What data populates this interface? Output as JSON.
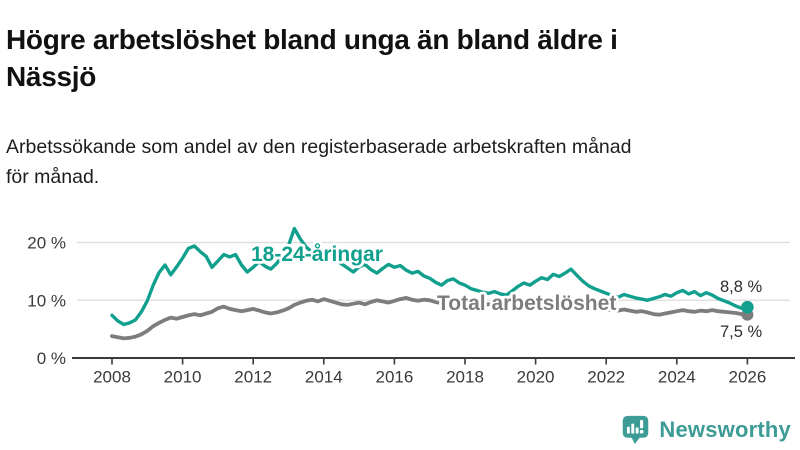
{
  "title": {
    "line1": "Högre arbetslöshet bland unga än bland äldre i",
    "line2": "Nässjö"
  },
  "subtitle": {
    "line1": "Arbetssökande som andel av den registerbaserade arbetskraften månad",
    "line2": "för månad."
  },
  "chart_data": {
    "type": "line",
    "x_unit": "year (monthly share of labour force)",
    "x_start": 2008.0,
    "x_step_years": 0.1667,
    "x_end": 2026.0,
    "x_tick_labels": [
      "2008",
      "2010",
      "2012",
      "2014",
      "2016",
      "2018",
      "2020",
      "2022",
      "2024",
      "2026"
    ],
    "y_ticks": [
      0,
      10,
      20
    ],
    "y_tick_labels": [
      "0 %",
      "10 %",
      "20 %"
    ],
    "ylim": [
      0,
      24
    ],
    "grid": "horizontal-only",
    "legend": "inline-labels-on-lines",
    "series": [
      {
        "name": "18-24-åringar",
        "color": "#12a08e",
        "end_value": 8.8,
        "end_label": "8,8 %",
        "values": [
          7.4,
          6.4,
          5.8,
          6.1,
          6.6,
          8.0,
          9.9,
          12.6,
          14.8,
          16.1,
          14.4,
          15.8,
          17.3,
          19.0,
          19.4,
          18.4,
          17.6,
          15.7,
          16.8,
          17.9,
          17.5,
          17.9,
          16.1,
          14.9,
          15.7,
          16.7,
          15.9,
          15.4,
          16.4,
          17.7,
          19.5,
          22.4,
          20.6,
          19.2,
          18.3,
          18.8,
          18.1,
          17.6,
          17.0,
          16.3,
          15.6,
          14.9,
          15.8,
          16.2,
          15.3,
          14.7,
          15.5,
          16.2,
          15.7,
          16.0,
          15.2,
          14.7,
          15.0,
          14.2,
          13.8,
          13.1,
          12.6,
          13.4,
          13.7,
          13.0,
          12.6,
          12.0,
          11.7,
          11.4,
          11.2,
          11.5,
          11.1,
          10.9,
          11.6,
          12.4,
          13.0,
          12.6,
          13.3,
          13.9,
          13.6,
          14.5,
          14.1,
          14.7,
          15.4,
          14.3,
          13.3,
          12.5,
          12.0,
          11.6,
          11.2,
          10.8,
          10.5,
          11.0,
          10.7,
          10.4,
          10.2,
          10.0,
          10.3,
          10.6,
          11.0,
          10.7,
          11.3,
          11.7,
          11.1,
          11.5,
          10.8,
          11.3,
          10.9,
          10.3,
          9.9,
          9.5,
          9.0,
          8.6,
          8.8
        ]
      },
      {
        "name": "Total arbetslöshet",
        "color": "#7d7d7d",
        "end_value": 7.5,
        "end_label": "7,5 %",
        "values": [
          3.8,
          3.6,
          3.4,
          3.5,
          3.7,
          4.1,
          4.7,
          5.5,
          6.1,
          6.6,
          7.0,
          6.8,
          7.1,
          7.4,
          7.6,
          7.4,
          7.7,
          8.0,
          8.6,
          8.9,
          8.5,
          8.3,
          8.1,
          8.3,
          8.5,
          8.2,
          7.9,
          7.7,
          7.9,
          8.2,
          8.6,
          9.2,
          9.6,
          9.9,
          10.1,
          9.8,
          10.2,
          9.9,
          9.6,
          9.3,
          9.2,
          9.4,
          9.6,
          9.3,
          9.7,
          10.0,
          9.8,
          9.6,
          9.9,
          10.2,
          10.4,
          10.1,
          9.9,
          10.1,
          10.0,
          9.7,
          9.5,
          9.7,
          9.8,
          9.6,
          9.4,
          9.2,
          9.0,
          9.1,
          9.3,
          9.1,
          8.9,
          8.8,
          9.0,
          9.2,
          9.4,
          9.3,
          9.5,
          10.0,
          10.4,
          10.3,
          10.1,
          9.9,
          9.7,
          9.4,
          9.1,
          8.9,
          8.7,
          8.6,
          8.4,
          8.3,
          8.2,
          8.4,
          8.2,
          8.0,
          8.1,
          7.9,
          7.6,
          7.5,
          7.7,
          7.9,
          8.1,
          8.3,
          8.1,
          8.0,
          8.2,
          8.1,
          8.3,
          8.1,
          8.0,
          7.9,
          7.8,
          7.6,
          7.5
        ]
      }
    ]
  },
  "branding": {
    "wordmark": "Newsworthy",
    "icon": "newsworthy-bar-chart-speech-bubble-icon",
    "color": "#3d9c95"
  },
  "colors": {
    "background": "#ffffff",
    "title_text": "#111111",
    "axis_text": "#3a3a3a",
    "grid": "#dcdcdc",
    "axis_line": "#3a3a3a",
    "value_label_text": "#2e2e2e",
    "halo": "#ffffff"
  }
}
